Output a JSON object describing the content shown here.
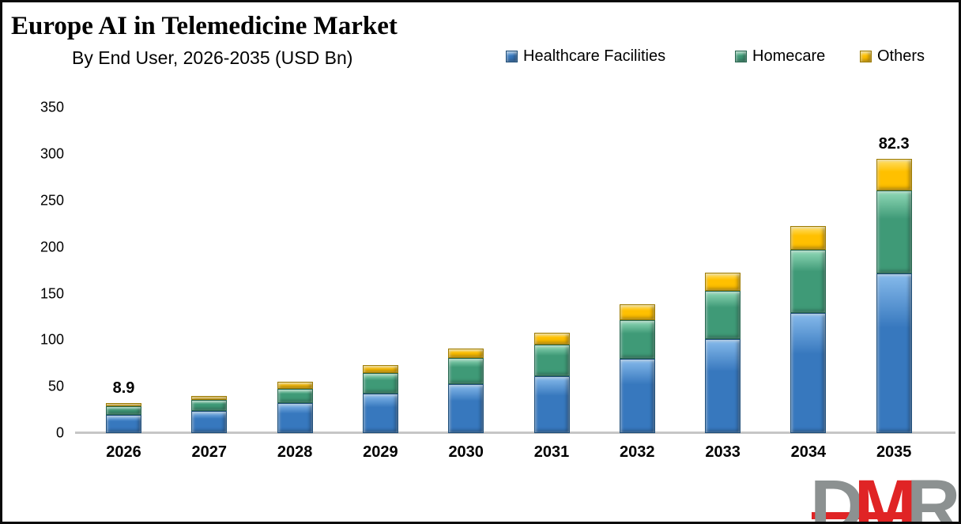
{
  "header": {
    "title": "Europe AI in Telemedicine Market",
    "subtitle": "By End User, 2026-2035 (USD Bn)"
  },
  "legend": [
    {
      "label": "Healthcare Facilities",
      "series": "healthcare"
    },
    {
      "label": "Homecare",
      "series": "homecare"
    },
    {
      "label": "Others",
      "series": "others"
    }
  ],
  "colors": {
    "healthcare": "#3778BE",
    "healthcare_light": "#86BAEB",
    "healthcare_dark": "#1F4E79",
    "homecare": "#3F9A77",
    "homecare_light": "#90D9B7",
    "homecare_dark": "#27664F",
    "others": "#FFC000",
    "others_light": "#FFE069",
    "others_dark": "#9E7B00",
    "axis_line": "#C6C6C6",
    "logo_gray": "#8C9191",
    "logo_red": "#E02425"
  },
  "chart_data": {
    "type": "bar",
    "stacked": true,
    "title": "Europe AI in Telemedicine Market",
    "subtitle": "By End User, 2026-2035 (USD Bn)",
    "categories": [
      "2026",
      "2027",
      "2028",
      "2029",
      "2030",
      "2031",
      "2032",
      "2033",
      "2034",
      "2035"
    ],
    "series": [
      {
        "name": "Healthcare Facilities",
        "key": "healthcare",
        "values": [
          19.5,
          24,
          32,
          42.5,
          52.5,
          61.5,
          80,
          101,
          129.5,
          172
        ]
      },
      {
        "name": "Homecare",
        "key": "homecare",
        "values": [
          9,
          11.5,
          16,
          22.5,
          28,
          33.5,
          42,
          52,
          67.5,
          89
        ]
      },
      {
        "name": "Others",
        "key": "others",
        "values": [
          4,
          4.5,
          7,
          8,
          10.5,
          13,
          17,
          20,
          26,
          34
        ]
      }
    ],
    "totals": [
      32.5,
      40,
      55,
      73,
      91,
      108,
      139,
      173,
      223,
      295
    ],
    "ylabel": "",
    "xlabel": "",
    "ylim": [
      0,
      350
    ],
    "yticks": [
      0,
      50,
      100,
      150,
      200,
      250,
      300,
      350
    ],
    "grid": false,
    "legend_position": "top-right",
    "annotations": [
      {
        "category": "2026",
        "text": "8.9"
      },
      {
        "category": "2035",
        "text": "82.3"
      }
    ]
  },
  "logo": {
    "letters": [
      {
        "char": "D",
        "tone": "gray"
      },
      {
        "char": "M",
        "tone": "red"
      },
      {
        "char": "R",
        "tone": "gray"
      }
    ]
  }
}
